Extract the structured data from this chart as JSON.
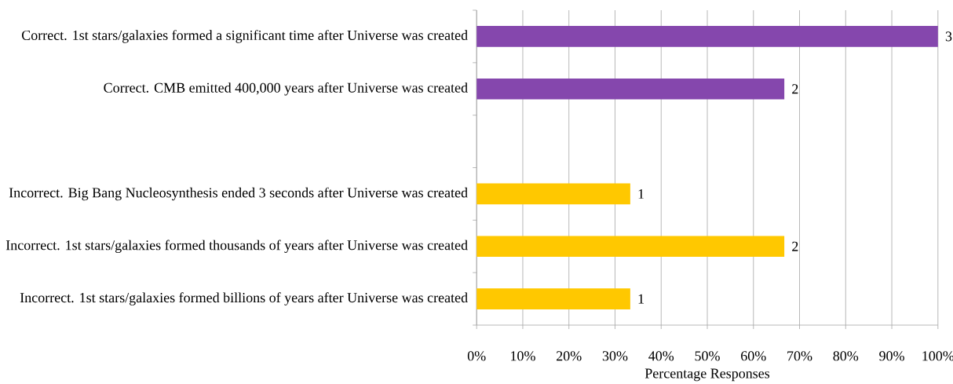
{
  "chart_data": {
    "type": "bar",
    "orientation": "horizontal",
    "categories": [
      "Correct. 1st stars/galaxies formed a significant time after Universe was created",
      "Correct. CMB emitted 400,000 years after Universe was created",
      null,
      "Incorrect. Big Bang Nucleosynthesis ended 3 seconds after Universe was created",
      "Incorrect. 1st stars/galaxies formed thousands of years after Universe was created",
      "Incorrect. 1st stars/galaxies formed billions of years after Universe was created"
    ],
    "values": [
      100,
      66.7,
      null,
      33.3,
      66.7,
      33.3
    ],
    "colors": [
      "#8547AD",
      "#8547AD",
      null,
      "#FFC800",
      "#FFC800",
      "#FFC800"
    ],
    "annotations": [
      {
        "text": "3",
        "x": 100,
        "y": "Correct. 1st stars/galaxies formed a significant time after Universe was created"
      },
      {
        "text": "2",
        "x": 66.7,
        "y": "Correct. CMB emitted 400,000 years after Universe was created"
      },
      {
        "text": "1",
        "x": 33.3,
        "y": "Incorrect. Big Bang Nucleosynthesis ended 3 seconds after Universe was created"
      },
      {
        "text": "2",
        "x": 66.7,
        "y": "Incorrect. 1st stars/galaxies formed thousands of years after Universe was created"
      },
      {
        "text": "1",
        "x": 33.3,
        "y": "Incorrect. 1st stars/galaxies formed billions of years after Universe was created"
      }
    ],
    "xlabel": "Percentage Responses",
    "xlim": [
      0,
      100
    ],
    "xticks": [
      {
        "value": 0,
        "label": "0%"
      },
      {
        "value": 10,
        "label": "10%"
      },
      {
        "value": 20,
        "label": "20%"
      },
      {
        "value": 30,
        "label": "30%"
      },
      {
        "value": 40,
        "label": "40%"
      },
      {
        "value": 50,
        "label": "50%"
      },
      {
        "value": 60,
        "label": "60%"
      },
      {
        "value": 70,
        "label": "70%"
      },
      {
        "value": 80,
        "label": "80%"
      },
      {
        "value": 90,
        "label": "90%"
      },
      {
        "value": 100,
        "label": "100%"
      }
    ],
    "grid": "x"
  }
}
